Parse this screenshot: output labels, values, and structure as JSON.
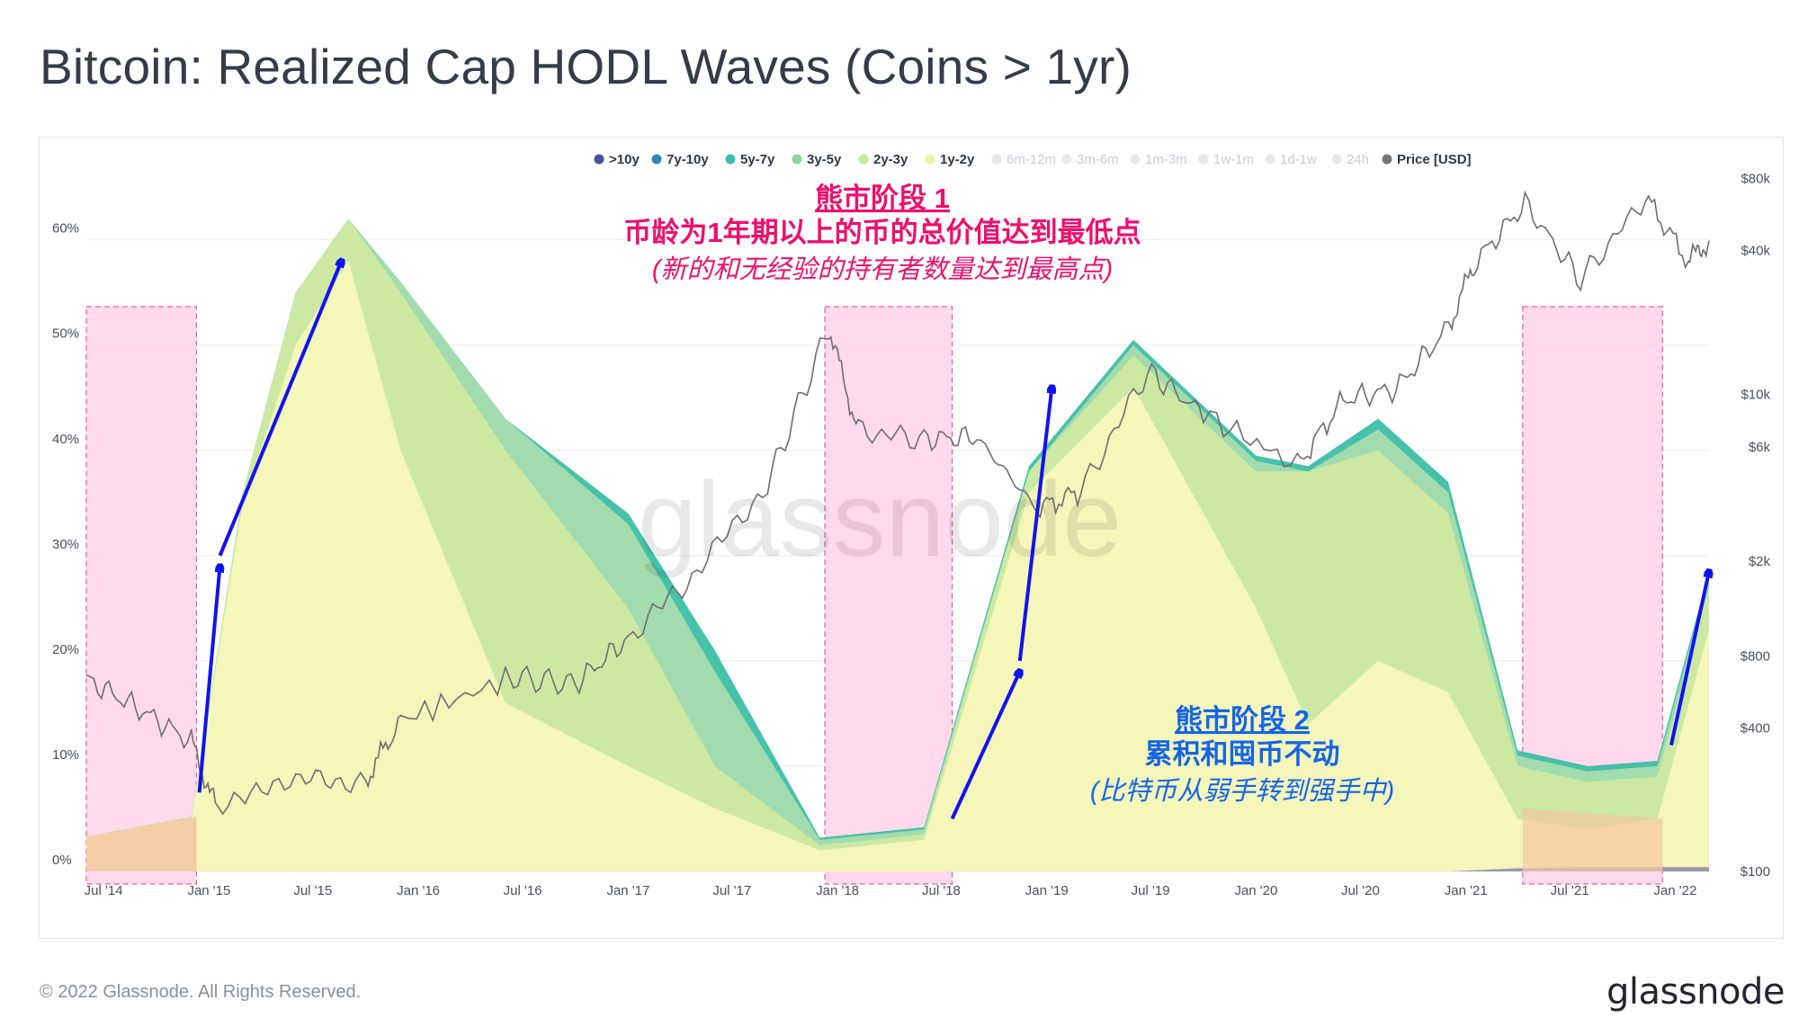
{
  "page": {
    "title": "Bitcoin: Realized Cap HODL Waves (Coins > 1yr)"
  },
  "footer": {
    "copyright": "© 2022 Glassnode. All Rights Reserved.",
    "brand": "glassnode"
  },
  "watermark": "glassnode",
  "colors": {
    "gt10y": "#4f4e9a",
    "7y10y": "#2f86b9",
    "5y7y": "#3dbfa5",
    "3y5y": "#a8dcae",
    "2y3y": "#cfeaa3",
    "1y2y": "#f5f7bc",
    "6m12m": "#fbeea3",
    "3m6m": "#f8cf86",
    "1m3m": "#f29c5e",
    "1w1m": "#e8663e",
    "1d1w": "#cf2e47",
    "24h": "#8c0838",
    "price": "#6e6e6e",
    "highlight": "#ffd6ea",
    "highlight_border": "#ee5b95",
    "annotation_pink": "#ef0f6b",
    "annotation_blue": "#1565e8",
    "arrow": "#1212f0"
  },
  "legend": [
    {
      "label": ">10y",
      "color": "#4f4e9a",
      "active": true
    },
    {
      "label": "7y-10y",
      "color": "#2f86b9",
      "active": true
    },
    {
      "label": "5y-7y",
      "color": "#3dbfa5",
      "active": true
    },
    {
      "label": "3y-5y",
      "color": "#8fd39a",
      "active": true
    },
    {
      "label": "2y-3y",
      "color": "#c6ea9a",
      "active": true
    },
    {
      "label": "1y-2y",
      "color": "#eef4a0",
      "active": true
    },
    {
      "label": "6m-12m",
      "color": "#fbeea3",
      "active": false
    },
    {
      "label": "3m-6m",
      "color": "#f8cf86",
      "active": false
    },
    {
      "label": "1m-3m",
      "color": "#f29c5e",
      "active": false
    },
    {
      "label": "1w-1m",
      "color": "#e8663e",
      "active": false
    },
    {
      "label": "1d-1w",
      "color": "#cf2e47",
      "active": false
    },
    {
      "label": "24h",
      "color": "#8c0838",
      "active": false
    },
    {
      "label": "Price [USD]",
      "color": "#777777",
      "active": true
    }
  ],
  "annotations": {
    "phase1": {
      "heading": "熊市阶段 1",
      "line1": "币龄为1年期以上的币的总价值达到最低点",
      "line2": "(新的和无经验的持有者数量达到最高点)"
    },
    "phase2": {
      "heading": "熊市阶段 2",
      "line1": "累积和囤币不动",
      "line2": "(比特币从弱手转到强手中)"
    }
  },
  "chart_data": {
    "type": "area",
    "x_ticks": [
      "Jul '14",
      "Jan '15",
      "Jul '15",
      "Jan '16",
      "Jul '16",
      "Jan '17",
      "Jul '17",
      "Jan '18",
      "Jul '18",
      "Jan '19",
      "Jul '19",
      "Jan '20",
      "Jul '20",
      "Jan '21",
      "Jul '21",
      "Jan '22"
    ],
    "y_left": {
      "ticks": [
        "0%",
        "10%",
        "20%",
        "30%",
        "40%",
        "50%",
        "60%"
      ],
      "range": [
        0,
        0.68
      ]
    },
    "y_right": {
      "ticks": [
        "$100",
        "$400",
        "$800",
        "$2k",
        "$6k",
        "$10k",
        "$40k",
        "$80k"
      ],
      "scale": "log",
      "range": [
        100,
        100000
      ]
    },
    "x_range": [
      "2014-06-01",
      "2022-03-01"
    ],
    "highlight_periods": [
      [
        "2014-06-01",
        "2014-12-10"
      ],
      [
        "2017-12-10",
        "2018-07-20"
      ],
      [
        "2021-04-10",
        "2021-12-10"
      ]
    ],
    "arrows": [
      [
        [
          "2014-12-15",
          0.075
        ],
        [
          "2015-01-20",
          0.29
        ]
      ],
      [
        [
          "2015-01-20",
          0.3
        ],
        [
          "2015-08-20",
          0.58
        ]
      ],
      [
        [
          "2018-07-20",
          0.05
        ],
        [
          "2018-11-15",
          0.19
        ]
      ],
      [
        [
          "2018-11-15",
          0.2
        ],
        [
          "2019-01-10",
          0.46
        ]
      ],
      [
        [
          "2021-12-25",
          0.12
        ],
        [
          "2022-03-01",
          0.285
        ]
      ]
    ],
    "series": [
      {
        "name": "1y-2y",
        "color": "#f5f7bc",
        "x": [
          "2014-06-01",
          "2014-12-01",
          "2015-03-01",
          "2015-06-01",
          "2015-09-01",
          "2015-12-01",
          "2016-06-01",
          "2017-01-01",
          "2017-06-01",
          "2017-12-01",
          "2018-06-01",
          "2018-12-01",
          "2019-06-01",
          "2020-01-01",
          "2020-04-01",
          "2020-08-01",
          "2020-12-01",
          "2021-04-01",
          "2021-08-01",
          "2021-12-01",
          "2022-03-01"
        ],
        "values": [
          0.033,
          0.05,
          0.35,
          0.5,
          0.58,
          0.4,
          0.16,
          0.1,
          0.06,
          0.02,
          0.03,
          0.36,
          0.46,
          0.25,
          0.14,
          0.2,
          0.17,
          0.05,
          0.04,
          0.05,
          0.23
        ]
      },
      {
        "name": "2y-3y",
        "color": "#cfeaa3",
        "x": [
          "2014-06-01",
          "2014-12-01",
          "2015-03-01",
          "2015-06-01",
          "2015-09-01",
          "2015-12-01",
          "2016-06-01",
          "2017-01-01",
          "2017-06-01",
          "2017-12-01",
          "2018-06-01",
          "2018-12-01",
          "2019-06-01",
          "2020-01-01",
          "2020-04-01",
          "2020-08-01",
          "2020-12-01",
          "2021-04-01",
          "2021-08-01",
          "2021-12-01",
          "2022-03-01"
        ],
        "values": [
          0.033,
          0.052,
          0.36,
          0.55,
          0.62,
          0.55,
          0.4,
          0.25,
          0.1,
          0.025,
          0.035,
          0.38,
          0.49,
          0.38,
          0.38,
          0.4,
          0.34,
          0.1,
          0.085,
          0.09,
          0.27
        ]
      },
      {
        "name": "3y-5y",
        "color": "#a8dcae",
        "x": [
          "2014-06-01",
          "2014-12-01",
          "2015-03-01",
          "2015-06-01",
          "2015-09-01",
          "2015-12-01",
          "2016-06-01",
          "2017-01-01",
          "2017-06-01",
          "2017-12-01",
          "2018-06-01",
          "2018-12-01",
          "2019-06-01",
          "2020-01-01",
          "2020-04-01",
          "2020-08-01",
          "2020-12-01",
          "2021-04-01",
          "2021-08-01",
          "2021-12-01",
          "2022-03-01"
        ],
        "values": [
          0.033,
          0.052,
          0.36,
          0.55,
          0.62,
          0.56,
          0.43,
          0.33,
          0.19,
          0.03,
          0.04,
          0.38,
          0.5,
          0.39,
          0.38,
          0.42,
          0.36,
          0.11,
          0.095,
          0.1,
          0.28
        ]
      },
      {
        "name": "5y-7y",
        "color": "#3dbfa5",
        "x": [
          "2014-06-01",
          "2014-12-01",
          "2015-03-01",
          "2015-06-01",
          "2015-09-01",
          "2015-12-01",
          "2016-06-01",
          "2017-01-01",
          "2017-06-01",
          "2017-12-01",
          "2018-06-01",
          "2018-12-01",
          "2019-06-01",
          "2020-01-01",
          "2020-04-01",
          "2020-08-01",
          "2020-12-01",
          "2021-04-01",
          "2021-08-01",
          "2021-12-01",
          "2022-03-01"
        ],
        "values": [
          0.033,
          0.052,
          0.36,
          0.55,
          0.62,
          0.56,
          0.43,
          0.34,
          0.21,
          0.032,
          0.042,
          0.385,
          0.505,
          0.395,
          0.385,
          0.43,
          0.37,
          0.115,
          0.1,
          0.105,
          0.285
        ]
      },
      {
        "name": ">10y",
        "color": "#4f4e9a",
        "x": [
          "2014-06-01",
          "2014-12-01",
          "2015-03-01",
          "2015-06-01",
          "2015-09-01",
          "2015-12-01",
          "2016-06-01",
          "2017-01-01",
          "2017-06-01",
          "2017-12-01",
          "2018-06-01",
          "2018-12-01",
          "2019-06-01",
          "2020-01-01",
          "2020-04-01",
          "2020-08-01",
          "2020-12-01",
          "2021-04-01",
          "2021-08-01",
          "2021-12-01",
          "2022-03-01"
        ],
        "values": [
          0,
          0,
          0,
          0,
          0,
          0,
          0,
          0,
          0,
          0,
          0,
          0,
          0,
          0,
          0,
          0,
          0,
          0.003,
          0.004,
          0.004,
          0.004
        ]
      },
      {
        "name": "Price [USD]",
        "color": "#6e6e6e",
        "axis": "right",
        "x": [
          "2014-06-01",
          "2014-09-01",
          "2014-12-01",
          "2015-01-15",
          "2015-06-01",
          "2015-10-01",
          "2015-12-01",
          "2016-06-15",
          "2016-10-01",
          "2017-01-01",
          "2017-05-01",
          "2017-09-01",
          "2017-12-17",
          "2018-02-06",
          "2018-06-01",
          "2018-09-01",
          "2018-12-15",
          "2019-03-01",
          "2019-06-26",
          "2019-10-01",
          "2020-03-13",
          "2020-06-01",
          "2020-09-01",
          "2020-12-01",
          "2021-01-15",
          "2021-04-14",
          "2021-07-20",
          "2021-11-10",
          "2022-01-24",
          "2022-03-01"
        ],
        "values": [
          640,
          480,
          350,
          180,
          240,
          240,
          430,
          650,
          610,
          950,
          1800,
          4200,
          19000,
          7000,
          6500,
          6600,
          3300,
          3900,
          12500,
          8300,
          5000,
          9500,
          10500,
          19000,
          35000,
          63000,
          30000,
          67000,
          36000,
          44000
        ]
      }
    ]
  }
}
